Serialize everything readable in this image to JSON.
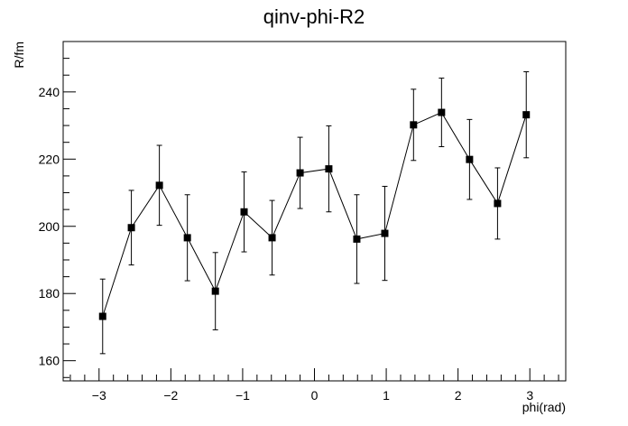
{
  "chart_data": {
    "type": "line",
    "title": "qinv-phi-R2",
    "xlabel": "phi(rad)",
    "ylabel": "R/fm",
    "xlim": [
      -3.5,
      3.5
    ],
    "ylim": [
      154,
      255
    ],
    "x_ticks": [
      -3,
      -2,
      -1,
      0,
      1,
      2,
      3
    ],
    "x_tick_labels": [
      "−3",
      "−2",
      "−1",
      "0",
      "1",
      "2",
      "3"
    ],
    "y_ticks": [
      160,
      180,
      200,
      220,
      240
    ],
    "y_tick_labels": [
      "160",
      "180",
      "200",
      "220",
      "240"
    ],
    "grid": false,
    "marker": "filled-square",
    "series": [
      {
        "x": [
          -2.95,
          -2.55,
          -2.16,
          -1.77,
          -1.38,
          -0.98,
          -0.59,
          -0.2,
          0.2,
          0.59,
          0.98,
          1.38,
          1.77,
          2.16,
          2.55,
          2.95
        ],
        "y": [
          173.2,
          199.6,
          212.2,
          196.6,
          180.7,
          204.3,
          196.6,
          215.9,
          217.1,
          196.2,
          197.9,
          230.2,
          233.9,
          219.9,
          206.8,
          233.2
        ],
        "y_err": [
          11.1,
          11.1,
          11.9,
          12.8,
          11.5,
          11.9,
          11.1,
          10.6,
          12.8,
          13.2,
          14.0,
          10.6,
          10.2,
          11.9,
          10.6,
          12.8
        ]
      }
    ],
    "colors": {
      "line": "#000000",
      "marker": "#000000",
      "frame": "#000000",
      "background": "#ffffff"
    }
  }
}
